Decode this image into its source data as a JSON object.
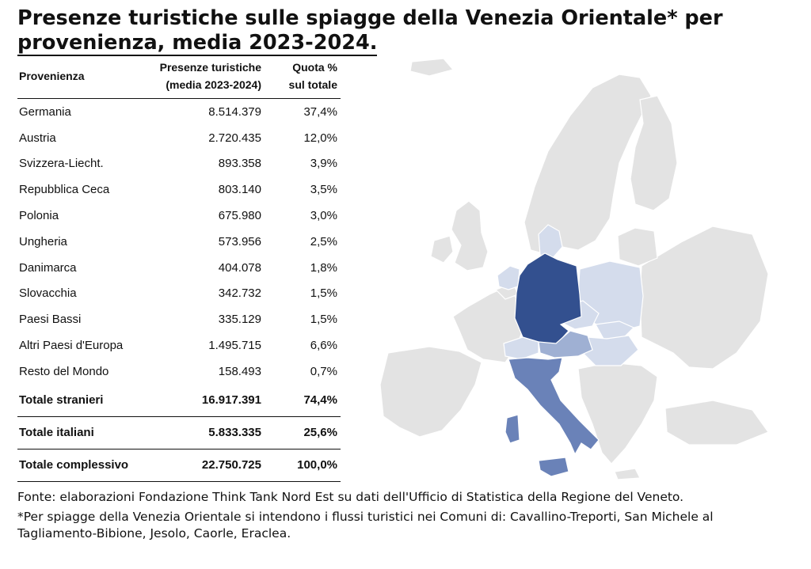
{
  "title_line1": "Presenze turistiche sulle spiagge della Venezia Orientale* per",
  "title_line2": "provenienza, media 2023-2024.",
  "chart_data": {
    "type": "table",
    "columns": [
      "Provenienza",
      "Presenze turistiche (media 2023-2024)",
      "Quota % sul totale"
    ],
    "header": {
      "col1": "Provenienza",
      "col2_line1": "Presenze turistiche",
      "col2_line2": "(media 2023-2024)",
      "col3_line1": "Quota %",
      "col3_line2": "sul totale"
    },
    "rows": [
      {
        "name": "Germania",
        "presenze": "8.514.379",
        "quota": "37,4%"
      },
      {
        "name": "Austria",
        "presenze": "2.720.435",
        "quota": "12,0%"
      },
      {
        "name": "Svizzera-Liecht.",
        "presenze": "893.358",
        "quota": "3,9%"
      },
      {
        "name": "Repubblica Ceca",
        "presenze": "803.140",
        "quota": "3,5%"
      },
      {
        "name": "Polonia",
        "presenze": "675.980",
        "quota": "3,0%"
      },
      {
        "name": "Ungheria",
        "presenze": "573.956",
        "quota": "2,5%"
      },
      {
        "name": "Danimarca",
        "presenze": "404.078",
        "quota": "1,8%"
      },
      {
        "name": "Slovacchia",
        "presenze": "342.732",
        "quota": "1,5%"
      },
      {
        "name": "Paesi Bassi",
        "presenze": "335.129",
        "quota": "1,5%"
      },
      {
        "name": "Altri Paesi d'Europa",
        "presenze": "1.495.715",
        "quota": "6,6%"
      },
      {
        "name": "Resto del Mondo",
        "presenze": "158.493",
        "quota": "0,7%"
      }
    ],
    "totals": [
      {
        "name": "Totale stranieri",
        "presenze": "16.917.391",
        "quota": "74,4%"
      },
      {
        "name": "Totale italiani",
        "presenze": "5.833.335",
        "quota": "25,6%"
      },
      {
        "name": "Totale complessivo",
        "presenze": "22.750.725",
        "quota": "100,0%"
      }
    ],
    "map_shading": {
      "Germania": "#33508f",
      "Italia": "#6a82b8",
      "Austria": "#9fb0d3",
      "others_highlighted": "#d4dcec",
      "non_highlighted": "#e3e3e3"
    }
  },
  "notes": {
    "source": "Fonte: elaborazioni Fondazione Think Tank Nord Est su dati dell'Ufficio di Statistica della Regione del Veneto.",
    "footnote": "*Per spiagge della Venezia Orientale si intendono i flussi turistici nei Comuni di: Cavallino-Treporti, San Michele al Tagliamento-Bibione, Jesolo, Caorle, Eraclea."
  }
}
